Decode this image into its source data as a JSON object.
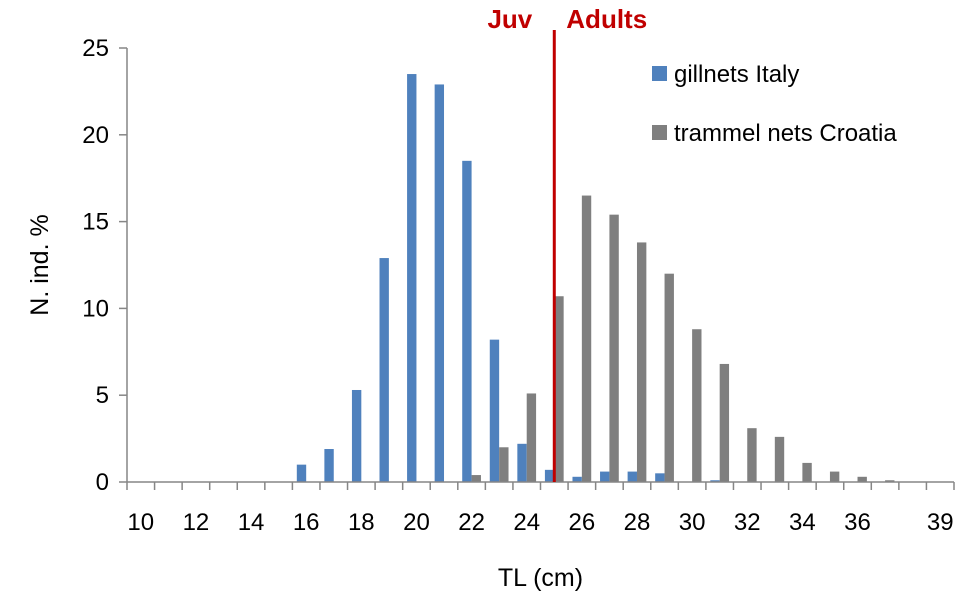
{
  "chart_data": {
    "type": "bar",
    "xlabel": "TL (cm)",
    "ylabel": "N. ind. %",
    "ylim": [
      0,
      25
    ],
    "yticks": [
      0,
      5,
      10,
      15,
      20,
      25
    ],
    "grid": false,
    "legend_position": "top-right",
    "categories": [
      "10",
      "11",
      "12",
      "13",
      "14",
      "15",
      "16",
      "17",
      "18",
      "19",
      "20",
      "21",
      "22",
      "23",
      "24",
      "25",
      "26",
      "27",
      "28",
      "29",
      "30",
      "31",
      "32",
      "33",
      "34",
      "35",
      "36",
      "37",
      "38",
      "39"
    ],
    "category_tick_labels": [
      "10",
      "",
      "12",
      "",
      "14",
      "",
      "16",
      "",
      "18",
      "",
      "20",
      "",
      "22",
      "",
      "24",
      "",
      "26",
      "",
      "28",
      "",
      "30",
      "",
      "32",
      "",
      "34",
      "",
      "36",
      "",
      "",
      "39"
    ],
    "series": [
      {
        "name": "gillnets Italy",
        "color": "#4F81BD",
        "values": [
          0,
          0,
          0,
          0,
          0,
          0,
          1.0,
          1.9,
          5.3,
          12.9,
          23.5,
          22.9,
          18.5,
          8.2,
          2.2,
          0.7,
          0.3,
          0.6,
          0.6,
          0.5,
          0,
          0.1,
          0,
          0,
          0,
          0,
          0,
          0,
          0,
          0
        ]
      },
      {
        "name": "trammel nets Croatia",
        "color": "#7F7F7F",
        "values": [
          0,
          0,
          0,
          0,
          0,
          0,
          0,
          0,
          0,
          0,
          0,
          0,
          0.4,
          2.0,
          5.1,
          10.7,
          16.5,
          15.4,
          13.8,
          12.0,
          8.8,
          6.8,
          3.1,
          2.6,
          1.1,
          0.6,
          0.3,
          0.1,
          0,
          0
        ]
      }
    ],
    "annotations": {
      "divider_at": 25,
      "divider_color": "#C00000",
      "left_label": "Juv",
      "right_label": "Adults"
    }
  }
}
